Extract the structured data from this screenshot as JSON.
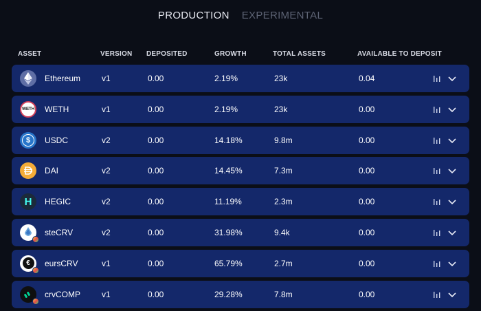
{
  "tabs": [
    {
      "label": "PRODUCTION",
      "active": true
    },
    {
      "label": "EXPERIMENTAL",
      "active": false
    }
  ],
  "columns": {
    "asset": "ASSET",
    "version": "VERSION",
    "deposited": "DEPOSITED",
    "growth": "GROWTH",
    "total": "TOTAL ASSETS",
    "available": "AVAILABLE TO DEPOSIT"
  },
  "rows": [
    {
      "asset": "Ethereum",
      "icon": "ethereum-icon",
      "version": "v1",
      "deposited": "0.00",
      "growth": "2.19%",
      "total": "23k",
      "available": "0.04"
    },
    {
      "asset": "WETH",
      "icon": "weth-icon",
      "version": "v1",
      "deposited": "0.00",
      "growth": "2.19%",
      "total": "23k",
      "available": "0.00"
    },
    {
      "asset": "USDC",
      "icon": "usdc-icon",
      "version": "v2",
      "deposited": "0.00",
      "growth": "14.18%",
      "total": "9.8m",
      "available": "0.00"
    },
    {
      "asset": "DAI",
      "icon": "dai-icon",
      "version": "v2",
      "deposited": "0.00",
      "growth": "14.45%",
      "total": "7.3m",
      "available": "0.00"
    },
    {
      "asset": "HEGIC",
      "icon": "hegic-icon",
      "version": "v2",
      "deposited": "0.00",
      "growth": "11.19%",
      "total": "2.3m",
      "available": "0.00"
    },
    {
      "asset": "steCRV",
      "icon": "stecrv-icon",
      "version": "v2",
      "deposited": "0.00",
      "growth": "31.98%",
      "total": "9.4k",
      "available": "0.00"
    },
    {
      "asset": "eursCRV",
      "icon": "eurscrv-icon",
      "version": "v1",
      "deposited": "0.00",
      "growth": "65.79%",
      "total": "2.7m",
      "available": "0.00"
    },
    {
      "asset": "crvCOMP",
      "icon": "crvcomp-icon",
      "version": "v1",
      "deposited": "0.00",
      "growth": "29.28%",
      "total": "7.8m",
      "available": "0.00"
    }
  ],
  "logo_glyphs": {
    "weth": "WETH",
    "usdc": "$",
    "hegic": "H",
    "eurscrv": "€"
  },
  "colors": {
    "background": "#0b0e17",
    "row": "#14286a",
    "tab_active": "#e8eaf2",
    "tab_inactive": "#5d6374",
    "usdc": "#2775ca",
    "dai": "#f5ac37",
    "hegic": "#1b2a3a",
    "hegic_letter": "#45fff4"
  }
}
